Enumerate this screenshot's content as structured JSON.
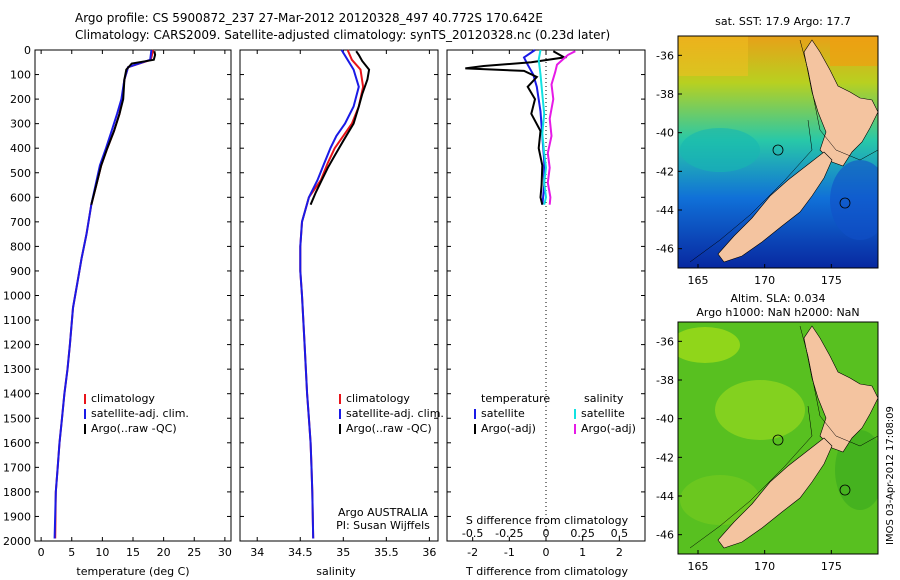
{
  "header": {
    "line1": "Argo profile: CS 5900872_237 27-Mar-2012 20120328_497 40.772S 170.642E",
    "line2": "Climatology: CARS2009. Satellite-adjusted climatology: synTS_20120328.nc (0.23d later)"
  },
  "colors": {
    "climatology": "#e8141a",
    "satellite": "#1a1ae6",
    "argo": "#000000",
    "sat_salinity": "#12e2e2",
    "argo_adj_salinity": "#e61ae6",
    "land": "#f4c4a0"
  },
  "chart_data": [
    {
      "type": "line",
      "name": "temperature-profile",
      "xlabel": "temperature (deg C)",
      "ylabel": "",
      "xlim": [
        -1,
        31
      ],
      "ylim": [
        2000,
        0
      ],
      "xticks": [
        0,
        5,
        10,
        15,
        20,
        25,
        30
      ],
      "yticks": [
        0,
        100,
        200,
        300,
        400,
        500,
        600,
        700,
        800,
        900,
        1000,
        1100,
        1200,
        1300,
        1400,
        1500,
        1600,
        1700,
        1800,
        1900,
        2000
      ],
      "legend": [
        "climatology",
        "satellite-adj. clim.",
        "Argo(..raw -QC)"
      ],
      "series": [
        {
          "name": "climatology",
          "color": "#e8141a",
          "x": [
            18.3,
            17.9,
            14.2,
            13.6,
            13.2,
            12.8,
            11.9,
            10.8,
            9.8,
            9.0,
            8.2,
            7.4,
            6.6,
            5.9,
            5.2,
            4.7,
            4.3,
            3.8,
            3.4,
            3.0,
            2.7,
            2.4,
            2.3
          ],
          "y": [
            0,
            40,
            70,
            120,
            200,
            260,
            330,
            400,
            470,
            550,
            630,
            750,
            850,
            950,
            1050,
            1200,
            1300,
            1400,
            1500,
            1600,
            1700,
            1800,
            1990
          ]
        },
        {
          "name": "satellite-adj. clim.",
          "color": "#1a1ae6",
          "x": [
            18.0,
            17.8,
            14.2,
            13.6,
            13.1,
            12.4,
            11.5,
            10.6,
            9.6,
            8.9,
            8.2,
            7.4,
            6.6,
            5.9,
            5.2,
            4.7,
            4.3,
            3.8,
            3.4,
            3.0,
            2.7,
            2.4,
            2.2
          ],
          "y": [
            0,
            40,
            70,
            120,
            200,
            260,
            330,
            400,
            470,
            550,
            630,
            750,
            850,
            950,
            1050,
            1200,
            1300,
            1400,
            1500,
            1600,
            1700,
            1800,
            1990
          ]
        },
        {
          "name": "Argo(..raw -QC)",
          "color": "#000000",
          "x": [
            18.5,
            18.6,
            18.4,
            14.8,
            13.9,
            13.6,
            13.4,
            12.8,
            11.9,
            10.8,
            9.8,
            9.0,
            8.2
          ],
          "y": [
            5,
            20,
            40,
            55,
            80,
            120,
            200,
            260,
            330,
            400,
            470,
            550,
            630
          ]
        }
      ]
    },
    {
      "type": "line",
      "name": "salinity-profile",
      "xlabel": "salinity",
      "ylabel": "",
      "xlim": [
        33.8,
        36.1
      ],
      "ylim": [
        2000,
        0
      ],
      "xticks": [
        34,
        34.5,
        35,
        35.5,
        36
      ],
      "legend": [
        "climatology",
        "satellite-adj. clim.",
        "Argo(..raw -QC)"
      ],
      "annotation": [
        "Argo AUSTRALIA",
        "PI: Susan Wijffels"
      ],
      "series": [
        {
          "name": "climatology",
          "color": "#e8141a",
          "x": [
            35.05,
            35.1,
            35.2,
            35.23,
            35.18,
            35.1,
            35.0,
            34.9,
            34.82,
            34.74,
            34.6,
            34.52,
            34.5,
            34.5,
            34.52,
            34.55,
            34.58,
            34.6,
            34.62,
            34.63,
            34.64,
            34.65
          ],
          "y": [
            0,
            40,
            80,
            150,
            230,
            300,
            350,
            400,
            460,
            530,
            600,
            700,
            800,
            900,
            1000,
            1200,
            1400,
            1500,
            1600,
            1700,
            1800,
            1990
          ]
        },
        {
          "name": "satellite-adj. clim.",
          "color": "#1a1ae6",
          "x": [
            34.98,
            35.05,
            35.12,
            35.18,
            35.12,
            35.02,
            34.92,
            34.85,
            34.78,
            34.7,
            34.6,
            34.52,
            34.5,
            34.5,
            34.52,
            34.55,
            34.58,
            34.6,
            34.62,
            34.63,
            34.64,
            34.65
          ],
          "y": [
            0,
            40,
            80,
            150,
            230,
            300,
            350,
            400,
            460,
            530,
            600,
            700,
            800,
            900,
            1000,
            1200,
            1400,
            1500,
            1600,
            1700,
            1800,
            1990
          ]
        },
        {
          "name": "Argo(..raw -QC)",
          "color": "#000000",
          "x": [
            35.15,
            35.18,
            35.22,
            35.3,
            35.28,
            35.22,
            35.18,
            35.12,
            35.0,
            34.9,
            34.82,
            34.75,
            34.68,
            34.62
          ],
          "y": [
            5,
            20,
            45,
            80,
            120,
            180,
            230,
            300,
            370,
            430,
            480,
            530,
            580,
            630
          ]
        }
      ]
    },
    {
      "type": "line",
      "name": "difference-profile",
      "xlabel": "T difference from climatology",
      "top_xlabel": "S difference from climatology",
      "xlim": [
        -2.7,
        2.7
      ],
      "ylim": [
        2000,
        0
      ],
      "xticks": [
        -2,
        -1,
        0,
        1,
        2
      ],
      "top_ticks": [
        "-0.5",
        "-0.25",
        "0",
        "0.25",
        "0.5"
      ],
      "top_tick_values": [
        -2,
        -1,
        0,
        1,
        2
      ],
      "legend_headers": [
        "temperature",
        "salinity"
      ],
      "legend": [
        "satellite",
        "Argo(-adj)",
        "satellite",
        "Argo(-adj)"
      ],
      "series": [
        {
          "name": "satellite",
          "color": "#1a1ae6",
          "x": [
            -0.3,
            -0.6,
            -0.5,
            -0.35,
            -0.25,
            -0.15,
            -0.1,
            -0.05,
            -0.05,
            -0.08,
            -0.1
          ],
          "y": [
            0,
            30,
            60,
            100,
            150,
            250,
            350,
            450,
            550,
            600,
            630
          ]
        },
        {
          "name": "Argo(-adj)",
          "color": "#000000",
          "x": [
            0.2,
            0.5,
            -0.4,
            -1.7,
            -2.2,
            -0.6,
            -0.25,
            -0.5,
            -0.3,
            -0.4,
            -0.15,
            -0.2,
            -0.1,
            -0.12,
            -0.15,
            -0.1
          ],
          "y": [
            5,
            30,
            50,
            65,
            75,
            85,
            110,
            150,
            200,
            260,
            330,
            400,
            470,
            550,
            600,
            630
          ]
        },
        {
          "name": "satellite",
          "color": "#12e2e2",
          "x": [
            -0.15,
            -0.2,
            -0.15,
            -0.1,
            -0.05,
            -0.1,
            -0.05,
            0.0,
            -0.05,
            0.0,
            -0.05
          ],
          "y": [
            0,
            40,
            100,
            180,
            260,
            340,
            420,
            480,
            540,
            600,
            630
          ]
        },
        {
          "name": "Argo(-adj)",
          "color": "#e61ae6",
          "x": [
            0.8,
            0.6,
            0.45,
            0.3,
            0.25,
            0.15,
            0.2,
            0.1,
            0.15,
            0.05,
            0.1,
            0.05,
            0.12,
            0.1
          ],
          "y": [
            5,
            20,
            40,
            60,
            90,
            140,
            200,
            280,
            350,
            420,
            480,
            540,
            600,
            630
          ]
        }
      ]
    },
    {
      "type": "heatmap",
      "name": "sst-map",
      "title": "sat. SST: 17.9 Argo: 17.7",
      "xticks": [
        165,
        170,
        175
      ],
      "yticks": [
        -36,
        -38,
        -40,
        -42,
        -44,
        -46
      ],
      "xlim": [
        163.5,
        178.5
      ],
      "ylim": [
        -47,
        -35
      ],
      "float_position": [
        170.642,
        -40.772
      ]
    },
    {
      "type": "heatmap",
      "name": "sla-map",
      "title_lines": [
        "Altim. SLA: 0.034",
        "Argo h1000: NaN h2000: NaN"
      ],
      "xticks": [
        165,
        170,
        175
      ],
      "yticks": [
        -36,
        -38,
        -40,
        -42,
        -44,
        -46
      ],
      "xlim": [
        163.5,
        178.5
      ],
      "ylim": [
        -47,
        -35
      ],
      "float_position": [
        170.642,
        -40.772
      ]
    }
  ],
  "stamp": "IMOS 03-Apr-2012 17:08:09"
}
